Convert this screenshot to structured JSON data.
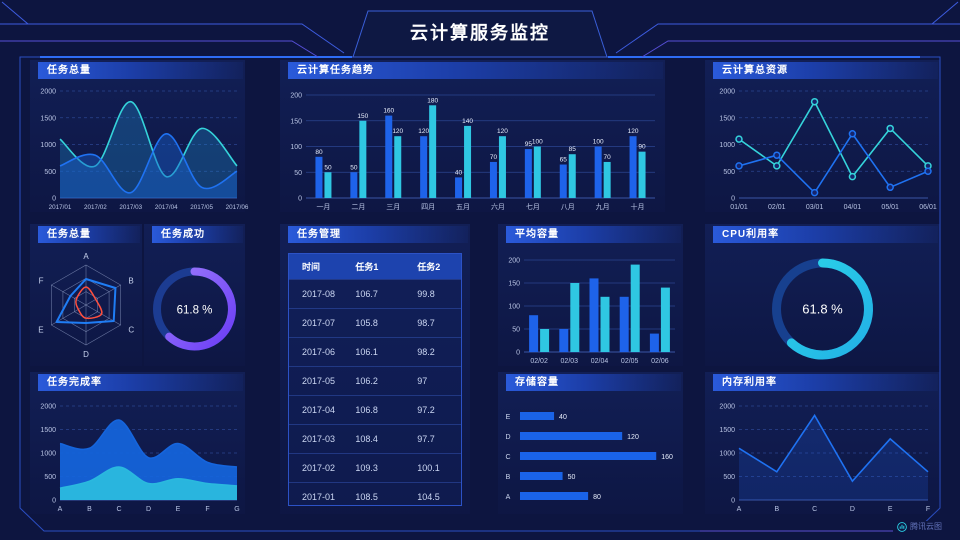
{
  "header": {
    "title": "云计算服务监控"
  },
  "watermark": {
    "label": "腾讯云图"
  },
  "colors": {
    "background": "#0d1540",
    "frame": "#2b4ec2",
    "accent_blue": "#1e63ea",
    "accent_cyan": "#2fc7e2",
    "accent_purple": "#7b55f7",
    "accent_red": "#ff4f3e",
    "chip_gradient_start": "#2a5ada",
    "text": "#ffffff",
    "axis_text": "#b9c4e4"
  },
  "panels": {
    "p1": {
      "title": "任务总量"
    },
    "p2": {
      "title": "云计算任务趋势"
    },
    "p3": {
      "title": "云计算总资源"
    },
    "p4": {
      "title": "任务总量"
    },
    "p5": {
      "title": "任务成功"
    },
    "p6": {
      "title": "任务管理"
    },
    "p7": {
      "title": "平均容量"
    },
    "p8": {
      "title": "CPU利用率"
    },
    "p9": {
      "title": "任务完成率"
    },
    "p10": {
      "title": "存储容量"
    },
    "p11": {
      "title": "内存利用率"
    }
  },
  "table": {
    "title": "任务管理",
    "columns": [
      "时间",
      "任务1",
      "任务2"
    ],
    "rows": [
      [
        "2017-08",
        "106.7",
        "99.8"
      ],
      [
        "2017-07",
        "105.8",
        "98.7"
      ],
      [
        "2017-06",
        "106.1",
        "98.2"
      ],
      [
        "2017-05",
        "106.2",
        "97"
      ],
      [
        "2017-04",
        "106.8",
        "97.2"
      ],
      [
        "2017-03",
        "108.4",
        "97.7"
      ],
      [
        "2017-02",
        "109.3",
        "100.1"
      ],
      [
        "2017-01",
        "108.5",
        "104.5"
      ]
    ]
  },
  "chart_data": [
    {
      "id": "task-total-area",
      "type": "area",
      "title": "任务总量",
      "smooth": true,
      "grid": "dashed",
      "x": [
        "2017/01",
        "2017/02",
        "2017/03",
        "2017/04",
        "2017/05",
        "2017/06"
      ],
      "ylim": [
        0,
        2000
      ],
      "yticks": [
        0,
        500,
        1000,
        1500,
        2000
      ],
      "series": [
        {
          "name": "series-cyan",
          "color": "#35d3da",
          "fill": "rgba(32,150,215,0.30)",
          "values": [
            1100,
            600,
            1800,
            400,
            1300,
            600
          ]
        },
        {
          "name": "series-blue",
          "color": "#1f72f2",
          "fill": "rgba(25,95,205,0.45)",
          "values": [
            600,
            800,
            100,
            1200,
            200,
            500
          ]
        }
      ]
    },
    {
      "id": "task-trend-bars",
      "type": "bar",
      "title": "云计算任务趋势",
      "grid": "solid",
      "value_labels": true,
      "categories": [
        "一月",
        "二月",
        "三月",
        "四月",
        "五月",
        "六月",
        "七月",
        "八月",
        "九月",
        "十月"
      ],
      "ylim": [
        0,
        200
      ],
      "yticks": [
        0,
        50,
        100,
        150,
        200
      ],
      "series": [
        {
          "name": "任务1",
          "color": "#1e63ea",
          "values": [
            80,
            50,
            160,
            120,
            40,
            70,
            95,
            65,
            100,
            120
          ]
        },
        {
          "name": "任务2",
          "color": "#2fc7e2",
          "values": [
            50,
            150,
            120,
            180,
            140,
            120,
            100,
            85,
            70,
            90
          ]
        }
      ]
    },
    {
      "id": "total-resources-line",
      "type": "line",
      "title": "云计算总资源",
      "markers": true,
      "grid": "dashed",
      "x": [
        "01/01",
        "02/01",
        "03/01",
        "04/01",
        "05/01",
        "06/01"
      ],
      "ylim": [
        0,
        2000
      ],
      "yticks": [
        0,
        500,
        1000,
        1500,
        2000
      ],
      "series": [
        {
          "name": "series-cyan",
          "color": "#35d3da",
          "values": [
            1100,
            600,
            1800,
            400,
            1300,
            600
          ]
        },
        {
          "name": "series-blue",
          "color": "#1f72f2",
          "values": [
            600,
            800,
            100,
            1200,
            200,
            500
          ]
        }
      ]
    },
    {
      "id": "task-radar",
      "type": "radar",
      "title": "任务总量",
      "axes": [
        "A",
        "B",
        "C",
        "D",
        "E",
        "F"
      ],
      "series": [
        {
          "name": "series-blue",
          "color": "#1f7df5",
          "values": [
            0.65,
            0.85,
            0.8,
            0.45,
            0.85,
            0.45
          ]
        },
        {
          "name": "series-red",
          "color": "#ff4f3e",
          "values": [
            0.45,
            0.28,
            0.45,
            0.33,
            0.22,
            0.28
          ]
        }
      ]
    },
    {
      "id": "task-success-gauge",
      "type": "donut",
      "title": "任务成功",
      "value": 61.8,
      "label": "61.8 %",
      "color_start": "#9b79fb",
      "color_end": "#6a3cf5",
      "track": "#1c3c92"
    },
    {
      "id": "avg-capacity-bars",
      "type": "bar",
      "title": "平均容量",
      "grid": "solid",
      "value_labels": false,
      "categories": [
        "02/02",
        "02/03",
        "02/04",
        "02/05",
        "02/06"
      ],
      "ylim": [
        0,
        200
      ],
      "yticks": [
        0,
        50,
        100,
        150,
        200
      ],
      "series": [
        {
          "name": "series-blue",
          "color": "#1e63ea",
          "values": [
            80,
            50,
            160,
            120,
            40
          ]
        },
        {
          "name": "series-cyan",
          "color": "#2fc7e2",
          "values": [
            50,
            150,
            120,
            190,
            140
          ]
        }
      ]
    },
    {
      "id": "cpu-gauge",
      "type": "donut",
      "title": "CPU利用率",
      "value": 61.8,
      "label": "61.8 %",
      "color_start": "#2bd3e8",
      "color_end": "#22b0e6",
      "track": "#17408f"
    },
    {
      "id": "completion-area",
      "type": "area",
      "title": "任务完成率",
      "smooth": true,
      "grid": "dashed",
      "x": [
        "A",
        "B",
        "C",
        "D",
        "E",
        "F",
        "G"
      ],
      "ylim": [
        0,
        2000
      ],
      "yticks": [
        0,
        500,
        1000,
        1500,
        2000
      ],
      "series": [
        {
          "name": "series-blue",
          "color": "#1565dd",
          "fill": "rgba(21,101,221,0.92)",
          "values": [
            1200,
            1100,
            1700,
            900,
            1200,
            800,
            700
          ]
        },
        {
          "name": "series-cyan",
          "color": "#2ab9de",
          "fill": "rgba(42,185,222,0.95)",
          "values": [
            250,
            400,
            700,
            350,
            450,
            350,
            300
          ]
        }
      ]
    },
    {
      "id": "storage-hbars",
      "type": "hbar",
      "title": "存储容量",
      "categories": [
        "E",
        "D",
        "C",
        "B",
        "A"
      ],
      "values": [
        40,
        120,
        160,
        50,
        80
      ],
      "xmax": 175,
      "color": "#1a63e8"
    },
    {
      "id": "memory-line",
      "type": "line",
      "title": "内存利用率",
      "markers": false,
      "grid": "dashed",
      "x": [
        "A",
        "B",
        "C",
        "D",
        "E",
        "F"
      ],
      "ylim": [
        0,
        2000
      ],
      "yticks": [
        0,
        500,
        1000,
        1500,
        2000
      ],
      "series": [
        {
          "name": "series-blue",
          "color": "#1f72f2",
          "fill": "rgba(30,90,220,0.22)",
          "values": [
            1100,
            600,
            1800,
            400,
            1300,
            600
          ]
        }
      ]
    }
  ]
}
